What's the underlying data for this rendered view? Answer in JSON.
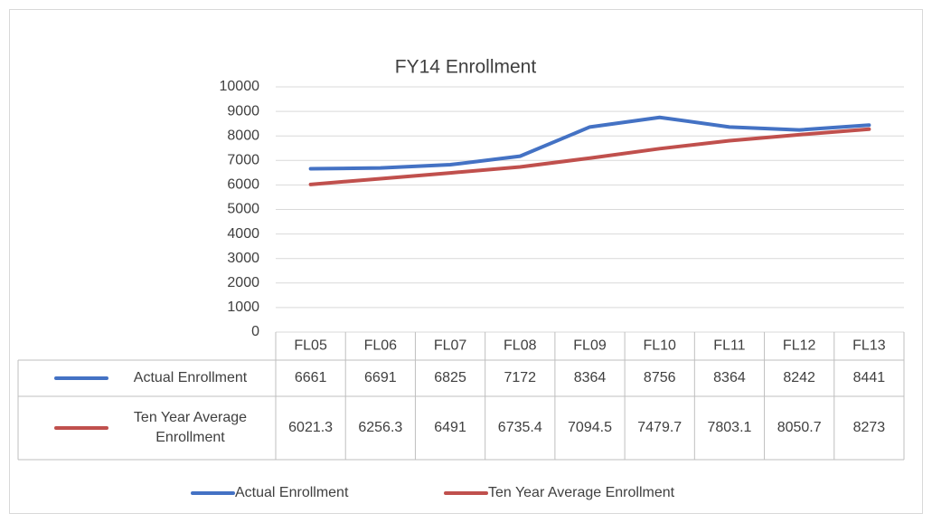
{
  "chart_data": {
    "type": "line",
    "title": "FY14 Enrollment",
    "categories": [
      "FL05",
      "FL06",
      "FL07",
      "FL08",
      "FL09",
      "FL10",
      "FL11",
      "FL12",
      "FL13"
    ],
    "series": [
      {
        "name": "Actual Enrollment",
        "color": "#4472c4",
        "values": [
          6661,
          6691,
          6825,
          7172,
          8364,
          8756,
          8364,
          8242,
          8441
        ]
      },
      {
        "name": "Ten Year Average Enrollment",
        "color": "#c0504d",
        "values": [
          6021.3,
          6256.3,
          6491,
          6735.4,
          7094.5,
          7479.7,
          7803.1,
          8050.7,
          8273
        ]
      }
    ],
    "ylim": [
      0,
      10000
    ],
    "yticks": [
      0,
      1000,
      2000,
      3000,
      4000,
      5000,
      6000,
      7000,
      8000,
      9000,
      10000
    ],
    "grid": true,
    "legend": "bottom",
    "data_table": true
  }
}
